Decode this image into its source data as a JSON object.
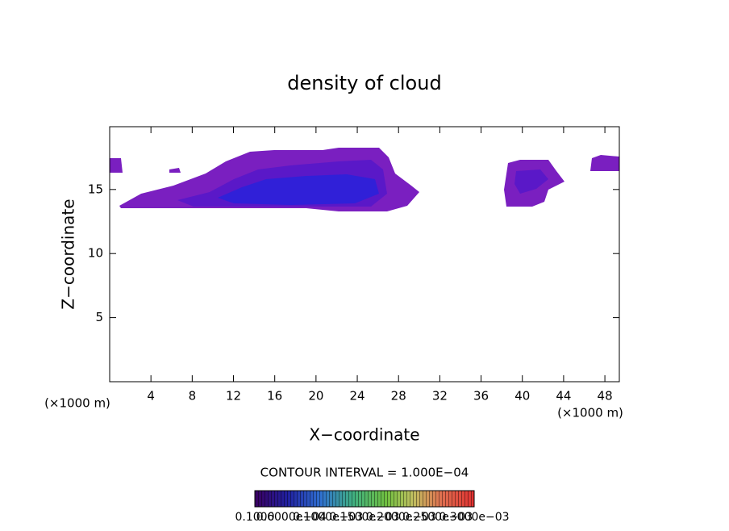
{
  "chart_data": {
    "type": "contour",
    "title": "density of cloud",
    "xlabel": "X−coordinate",
    "ylabel": "Z−coordinate",
    "xunit_left": "(×1000 m)",
    "xunit_right": "(×1000 m)",
    "xlim": [
      0,
      49.4
    ],
    "xticks": [
      4,
      8,
      12,
      16,
      20,
      24,
      28,
      32,
      36,
      40,
      44,
      48
    ],
    "ylim": [
      0,
      19.9
    ],
    "yticks": [
      5,
      10,
      15
    ],
    "contour_interval": "CONTOUR INTERVAL = 1.000E−04",
    "colorbar_labels": [
      "0.1000",
      "0.6000e−04",
      "0.1000e−03",
      "0.1500e−03",
      "0.2000e−03",
      "0.2500e−03",
      "0.3000e−03"
    ]
  }
}
